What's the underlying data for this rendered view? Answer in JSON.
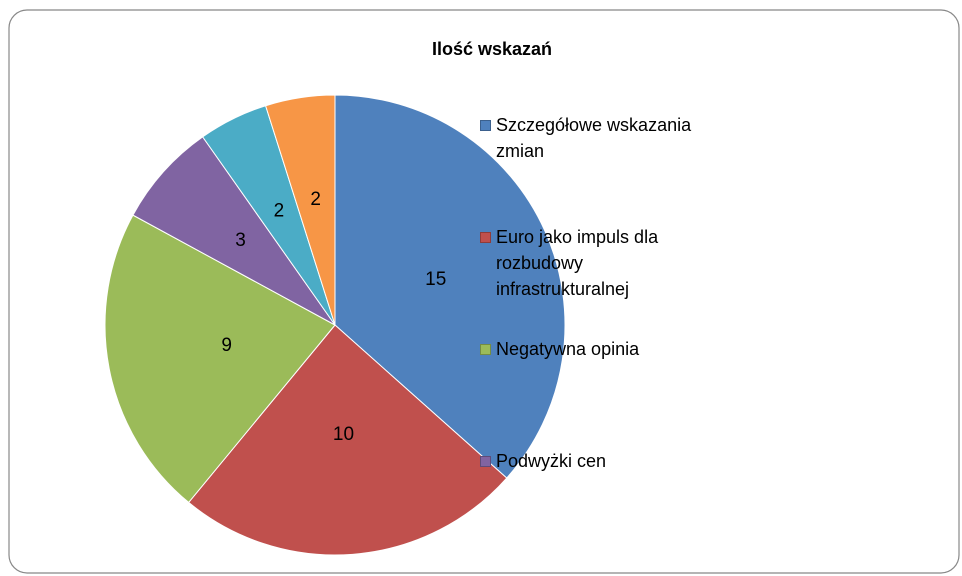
{
  "chart_data": {
    "type": "pie",
    "title": "Ilość wskazań",
    "categories": [
      "Szczegółowe wskazania zmian",
      "Euro jako impuls dla rozbudowy infrastrukturalnej",
      "Negatywna opinia",
      "Podwyżki cen",
      null,
      null
    ],
    "values": [
      15,
      10,
      9,
      3,
      2,
      2
    ],
    "colors": [
      "#4f81bd",
      "#c0504d",
      "#9bbb59",
      "#8064a2",
      "#4bacc6",
      "#f79646"
    ],
    "legend": "right"
  }
}
